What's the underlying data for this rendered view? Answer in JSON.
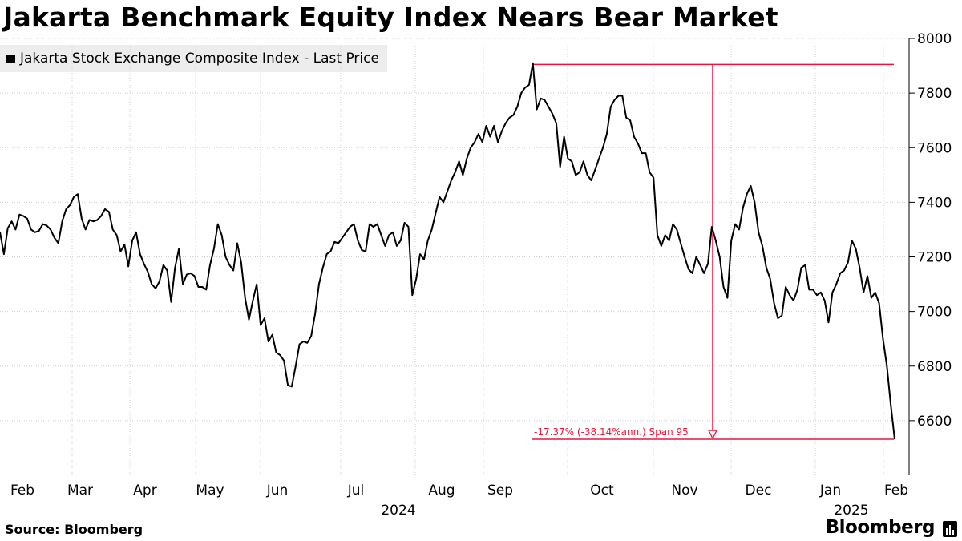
{
  "title": "Jakarta Benchmark Equity Index Nears Bear Market",
  "source": "Source: Bloomberg",
  "brand": "Bloomberg",
  "colors": {
    "line": "#000000",
    "annotation": "#e5173f",
    "grid": "#cfcfcf"
  },
  "chart_data": {
    "type": "line",
    "legend": "Jakarta Stock Exchange Composite Index - Last Price",
    "series_name": "Jakarta Stock Exchange Composite Index - Last Price",
    "x_tick_labels": [
      "Feb",
      "Mar",
      "Apr",
      "May",
      "Jun",
      "Jul",
      "Aug",
      "Sep",
      "Oct",
      "Nov",
      "Dec",
      "Jan",
      "Feb"
    ],
    "year_labels": [
      "2024",
      "2025"
    ],
    "y_tick_labels": [
      "6600",
      "6800",
      "7000",
      "7200",
      "7400",
      "7600",
      "7800",
      "8000"
    ],
    "ylim": [
      6400,
      8000
    ],
    "y_axis_side": "right",
    "annotation": {
      "label": "-17.37% (-38.14%ann.) Span 95",
      "high": 7905,
      "low": 6532
    },
    "values": [
      7290,
      7210,
      7305,
      7330,
      7300,
      7355,
      7350,
      7340,
      7300,
      7290,
      7295,
      7320,
      7315,
      7300,
      7270,
      7250,
      7330,
      7375,
      7390,
      7420,
      7430,
      7340,
      7300,
      7335,
      7330,
      7335,
      7350,
      7375,
      7365,
      7300,
      7280,
      7220,
      7245,
      7165,
      7260,
      7290,
      7210,
      7175,
      7145,
      7100,
      7085,
      7110,
      7170,
      7150,
      7035,
      7160,
      7230,
      7100,
      7135,
      7140,
      7130,
      7090,
      7090,
      7080,
      7170,
      7230,
      7320,
      7280,
      7200,
      7170,
      7150,
      7250,
      7180,
      7050,
      6970,
      7040,
      7100,
      6950,
      6975,
      6890,
      6915,
      6850,
      6840,
      6820,
      6730,
      6725,
      6800,
      6880,
      6890,
      6885,
      6910,
      6990,
      7100,
      7160,
      7210,
      7220,
      7255,
      7250,
      7270,
      7290,
      7310,
      7320,
      7260,
      7225,
      7220,
      7320,
      7310,
      7320,
      7280,
      7240,
      7280,
      7290,
      7240,
      7260,
      7325,
      7310,
      7060,
      7120,
      7210,
      7190,
      7260,
      7300,
      7360,
      7420,
      7400,
      7440,
      7480,
      7510,
      7550,
      7500,
      7560,
      7600,
      7620,
      7650,
      7620,
      7680,
      7640,
      7680,
      7620,
      7660,
      7690,
      7710,
      7720,
      7750,
      7800,
      7820,
      7830,
      7910,
      7740,
      7780,
      7775,
      7750,
      7725,
      7690,
      7530,
      7640,
      7560,
      7550,
      7500,
      7510,
      7550,
      7500,
      7480,
      7520,
      7560,
      7600,
      7650,
      7750,
      7775,
      7790,
      7790,
      7710,
      7700,
      7640,
      7615,
      7580,
      7580,
      7510,
      7490,
      7280,
      7240,
      7280,
      7260,
      7320,
      7300,
      7250,
      7200,
      7155,
      7140,
      7200,
      7170,
      7140,
      7175,
      7310,
      7260,
      7200,
      7090,
      7050,
      7260,
      7320,
      7300,
      7380,
      7430,
      7460,
      7400,
      7290,
      7240,
      7160,
      7120,
      7030,
      6975,
      6985,
      7090,
      7060,
      7040,
      7080,
      7160,
      7170,
      7080,
      7080,
      7060,
      7070,
      7040,
      6960,
      7070,
      7100,
      7140,
      7150,
      7180,
      7260,
      7230,
      7160,
      7070,
      7130,
      7050,
      7070,
      7030,
      6900,
      6800,
      6660,
      6532
    ]
  }
}
